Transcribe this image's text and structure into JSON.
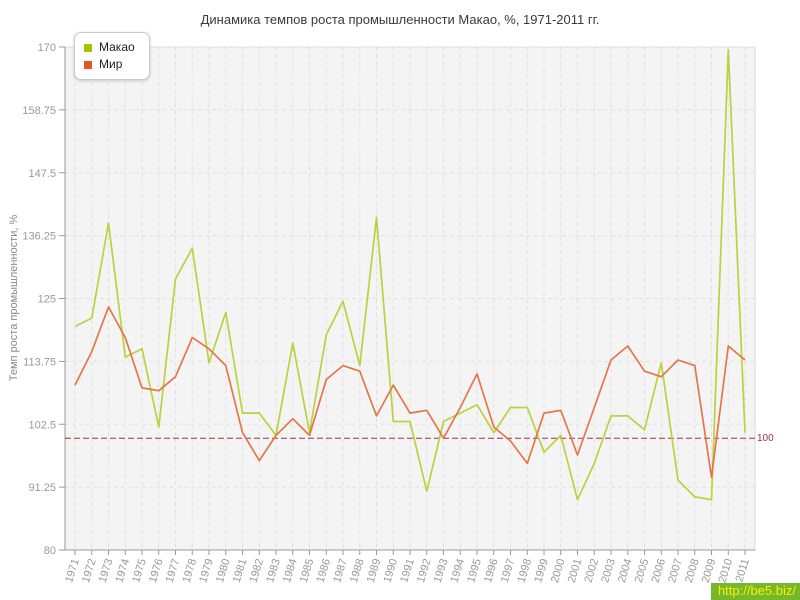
{
  "title": "Динамика темпов роста промышленности Макао, %, 1971-2011 гг.",
  "watermark": "http://be5.biz/",
  "chart_data": {
    "type": "line",
    "title": "Динамика темпов роста промышленности Макао, %, 1971-2011 гг.",
    "ylabel": "Темп роста промышленности, %",
    "xlabel": "",
    "ylim": [
      80,
      170
    ],
    "yticks": [
      80,
      91.25,
      102.5,
      113.75,
      125,
      136.25,
      147.5,
      158.75,
      170
    ],
    "grid": true,
    "legend_position": "top-left",
    "ref_line": {
      "value": 100,
      "label": "100",
      "color": "#993344"
    },
    "x": [
      1971,
      1972,
      1973,
      1974,
      1975,
      1976,
      1977,
      1978,
      1979,
      1980,
      1981,
      1982,
      1983,
      1984,
      1985,
      1986,
      1987,
      1988,
      1989,
      1990,
      1991,
      1992,
      1993,
      1994,
      1995,
      1996,
      1997,
      1998,
      1999,
      2000,
      2001,
      2002,
      2003,
      2004,
      2005,
      2006,
      2007,
      2008,
      2009,
      2010,
      2011
    ],
    "series": [
      {
        "name": "Макао",
        "color": "#b9d23e",
        "legend_color": "#a8c400",
        "values": [
          120,
          121.5,
          138.5,
          114.5,
          116,
          102,
          128.5,
          134,
          113.5,
          122.5,
          104.5,
          104.5,
          100.5,
          117,
          101,
          118.5,
          124.5,
          113,
          139.5,
          103,
          103,
          90.5,
          103,
          104.5,
          106,
          101,
          105.5,
          105.5,
          97.5,
          100.5,
          89,
          95.5,
          104,
          104,
          101.5,
          113.5,
          92.5,
          89.5,
          89,
          169.5,
          101
        ]
      },
      {
        "name": "Мир",
        "color": "#e4764a",
        "legend_color": "#e05a26",
        "values": [
          109.5,
          115.5,
          123.5,
          118,
          109,
          108.5,
          111,
          118,
          116,
          113,
          101,
          96,
          100.5,
          103.5,
          100.5,
          110.5,
          113,
          112,
          104,
          109.5,
          104.5,
          105,
          100,
          105.5,
          111.5,
          102,
          99.5,
          95.5,
          104.5,
          105,
          97,
          105.5,
          114,
          116.5,
          112,
          111,
          114,
          113,
          93,
          116.5,
          114
        ]
      }
    ],
    "colors": {
      "plot_background": "#f4f4f4",
      "grid_line": "#e1e1e1",
      "axis_line": "#999999",
      "tick_label": "#999999",
      "title_text": "#3a3a3a",
      "watermark_bg": "#76b82d",
      "watermark_text": "#fdee00"
    }
  }
}
